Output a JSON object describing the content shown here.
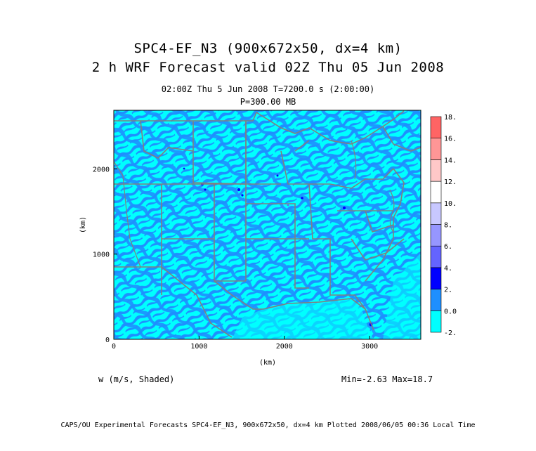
{
  "header": {
    "title_line1": "SPC4-EF_N3 (900x672x50, dx=4 km)",
    "title_line2": "2 h WRF Forecast valid 02Z Thu 05 Jun 2008",
    "subtitle_line1": "02:00Z Thu  5 Jun 2008    T=7200.0 s (2:00:00)",
    "subtitle_line2": "P=300.00 MB"
  },
  "map": {
    "x_axis_label": "(km)",
    "y_axis_label": "(km)",
    "x_ticks": [
      "0",
      "1000",
      "2000",
      "3000"
    ],
    "y_ticks": [
      "0",
      "1000",
      "2000"
    ],
    "x_tick_values": [
      0,
      1000,
      2000,
      3000
    ],
    "y_tick_values": [
      0,
      1000,
      2000
    ],
    "x_range": [
      0,
      3600
    ],
    "y_range": [
      0,
      2688
    ],
    "ocean_color": "#00ffff",
    "field_color": "#1e90ff",
    "boundary_color": "#808080"
  },
  "colorbar": {
    "labels": [
      "18.",
      "16.",
      "14.",
      "12.",
      "10.",
      "8.",
      "6.",
      "4.",
      "2.",
      "0.0",
      "-2."
    ],
    "levels": [
      18,
      16,
      14,
      12,
      10,
      8,
      6,
      4,
      2,
      0,
      -2
    ],
    "colors_bottom_to_top": [
      "#00ffff",
      "#1e8fff",
      "#0000ff",
      "#6464ff",
      "#9696ff",
      "#c8c8ff",
      "#ffffff",
      "#ffc8c8",
      "#ff9696",
      "#ff6464"
    ]
  },
  "footer": {
    "field_label": "w (m/s, Shaded)",
    "minmax": "Min=-2.63 Max=18.7",
    "credit": "CAPS/OU Experimental Forecasts  SPC4-EF_N3, 900x672x50, dx=4 km  Plotted 2008/06/05 00:36 Local Time"
  }
}
